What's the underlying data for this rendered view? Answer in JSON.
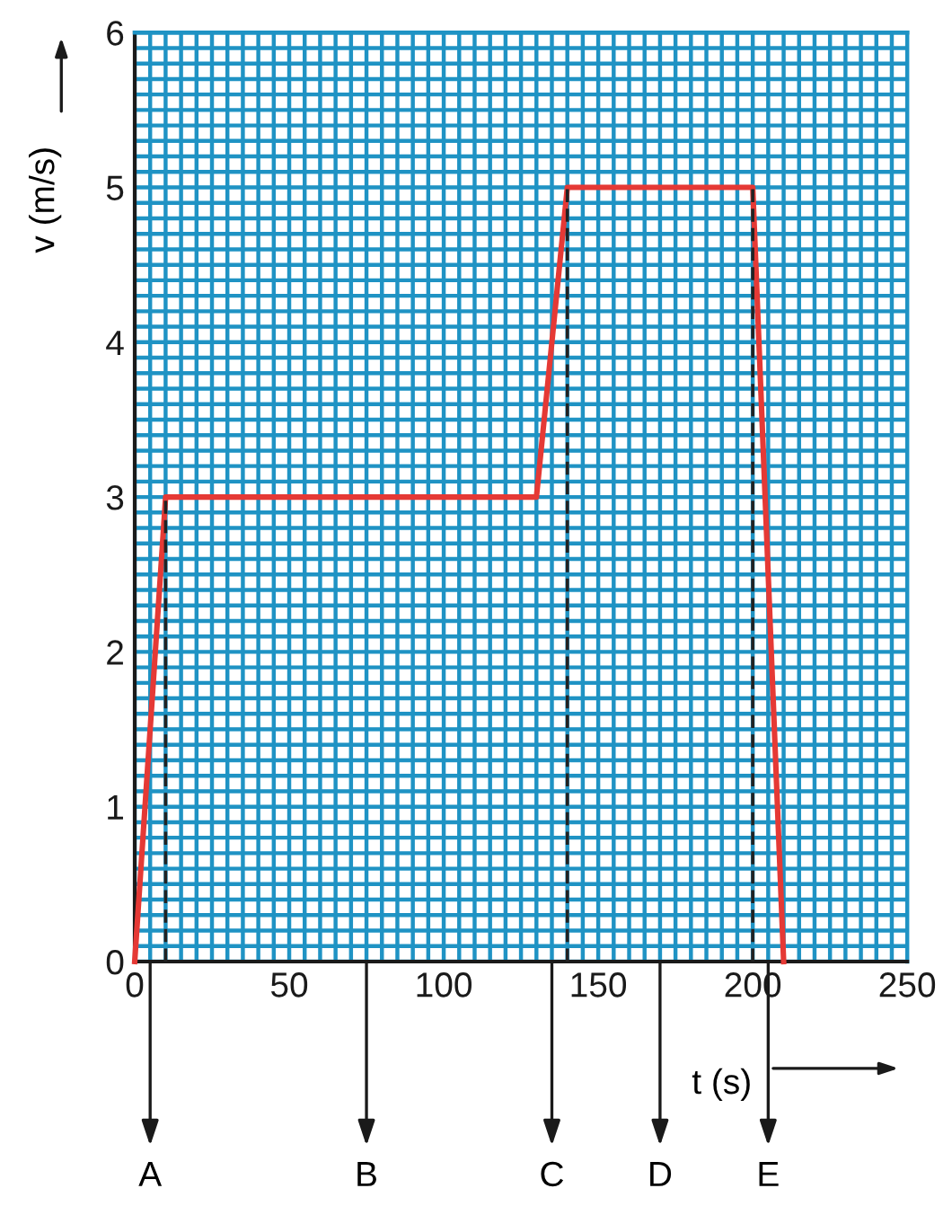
{
  "chart_data": {
    "type": "line",
    "xlabel": "t (s)",
    "ylabel": "v (m/s)",
    "x": [
      0,
      10,
      130,
      140,
      200,
      210
    ],
    "series": [
      {
        "color": "#e53935",
        "values": [
          0,
          3,
          3,
          5,
          5,
          0
        ]
      },
      {
        "color": "#222222",
        "x": [
          10,
          10
        ],
        "values": [
          0,
          3
        ],
        "line_style": "dashed"
      },
      {
        "color": "#222222",
        "x": [
          140,
          140
        ],
        "values": [
          0,
          5
        ],
        "line_style": "dashed"
      },
      {
        "color": "#222222",
        "x": [
          200,
          200
        ],
        "values": [
          0,
          5
        ],
        "line_style": "dashed"
      }
    ],
    "ref_lines": [
      {
        "axis": "x",
        "value": 5,
        "label": "A"
      },
      {
        "axis": "x",
        "value": 75,
        "label": "B"
      },
      {
        "axis": "x",
        "value": 135,
        "label": "C"
      },
      {
        "axis": "x",
        "value": 170,
        "label": "D"
      },
      {
        "axis": "x",
        "value": 205,
        "label": "E"
      }
    ],
    "xlim": [
      0,
      250
    ],
    "ylim": [
      0,
      6
    ],
    "xticks": [
      0,
      50,
      100,
      150,
      200,
      250
    ],
    "yticks": [
      0,
      1,
      2,
      3,
      4,
      5,
      6
    ],
    "grid": true,
    "line_style": "solid",
    "marker": "none"
  }
}
